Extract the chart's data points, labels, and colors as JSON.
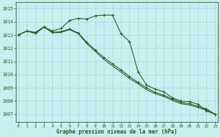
{
  "x": [
    0,
    1,
    2,
    3,
    4,
    5,
    6,
    7,
    8,
    9,
    10,
    11,
    12,
    13,
    14,
    15,
    16,
    17,
    18,
    19,
    20,
    21,
    22,
    23
  ],
  "series1": [
    1013.0,
    1013.3,
    1013.2,
    1013.6,
    1013.3,
    1013.5,
    1014.1,
    1014.25,
    1014.2,
    1014.45,
    1014.5,
    1014.5,
    1013.1,
    1012.5,
    1010.2,
    1009.2,
    1008.9,
    1008.7,
    1008.25,
    1008.0,
    1007.95,
    1007.75,
    1007.25,
    1007.0
  ],
  "series2": [
    1013.0,
    1013.3,
    1013.15,
    1013.6,
    1013.2,
    1013.25,
    1013.45,
    1013.15,
    1012.45,
    1011.85,
    1011.3,
    1010.8,
    1010.35,
    1009.85,
    1009.4,
    1009.0,
    1008.65,
    1008.45,
    1008.15,
    1007.9,
    1007.8,
    1007.6,
    1007.4,
    1007.0
  ],
  "series3": [
    1013.0,
    1013.3,
    1013.1,
    1013.6,
    1013.15,
    1013.2,
    1013.4,
    1013.1,
    1012.35,
    1011.75,
    1011.15,
    1010.65,
    1010.2,
    1009.7,
    1009.3,
    1008.85,
    1008.55,
    1008.35,
    1008.05,
    1007.8,
    1007.7,
    1007.5,
    1007.3,
    1007.0
  ],
  "bg_color": "#c8eef0",
  "grid_color": "#b0d0d8",
  "line_color": "#1e5c1e",
  "ylabel_values": [
    1007,
    1008,
    1009,
    1010,
    1011,
    1012,
    1013,
    1014,
    1015
  ],
  "ylim": [
    1006.4,
    1015.5
  ],
  "xlim": [
    -0.3,
    23.3
  ],
  "xlabel": "Graphe pression niveau de la mer (hPa)"
}
